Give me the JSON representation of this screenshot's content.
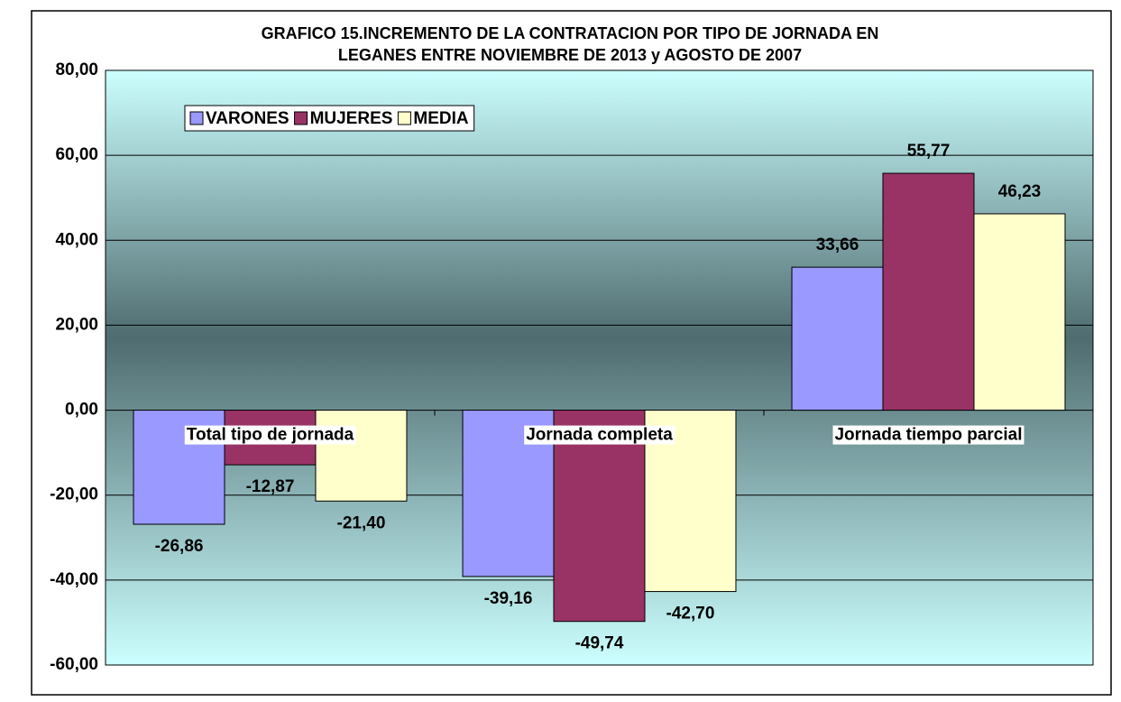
{
  "chart_data": {
    "type": "bar",
    "title": [
      "GRAFICO 15.INCREMENTO DE LA CONTRATACION POR TIPO DE JORNADA EN",
      "LEGANES ENTRE NOVIEMBRE DE 2013 y AGOSTO DE 2007"
    ],
    "categories": [
      "Total tipo de jornada",
      "Jornada completa",
      "Jornada tiempo parcial"
    ],
    "series": [
      {
        "name": "VARONES",
        "color": "#9999ff",
        "values": [
          -26.86,
          -39.16,
          33.66
        ],
        "value_labels": [
          "-26,86",
          "-39,16",
          "33,66"
        ]
      },
      {
        "name": "MUJERES",
        "color": "#993366",
        "values": [
          -12.87,
          -49.74,
          55.77
        ],
        "value_labels": [
          "-12,87",
          "-49,74",
          "55,77"
        ]
      },
      {
        "name": "MEDIA",
        "color": "#ffffcc",
        "values": [
          -21.4,
          -42.7,
          46.23
        ],
        "value_labels": [
          "-21,40",
          "-42,70",
          "46,23"
        ]
      }
    ],
    "ylim": [
      -60,
      80
    ],
    "yticks": [
      {
        "value": -60,
        "label": "-60,00"
      },
      {
        "value": -40,
        "label": "-40,00"
      },
      {
        "value": -20,
        "label": "-20,00"
      },
      {
        "value": 0,
        "label": "0,00"
      },
      {
        "value": 20,
        "label": "20,00"
      },
      {
        "value": 40,
        "label": "40,00"
      },
      {
        "value": 60,
        "label": "60,00"
      },
      {
        "value": 80,
        "label": "80,00"
      }
    ],
    "grid": true,
    "legend": "top-left"
  }
}
